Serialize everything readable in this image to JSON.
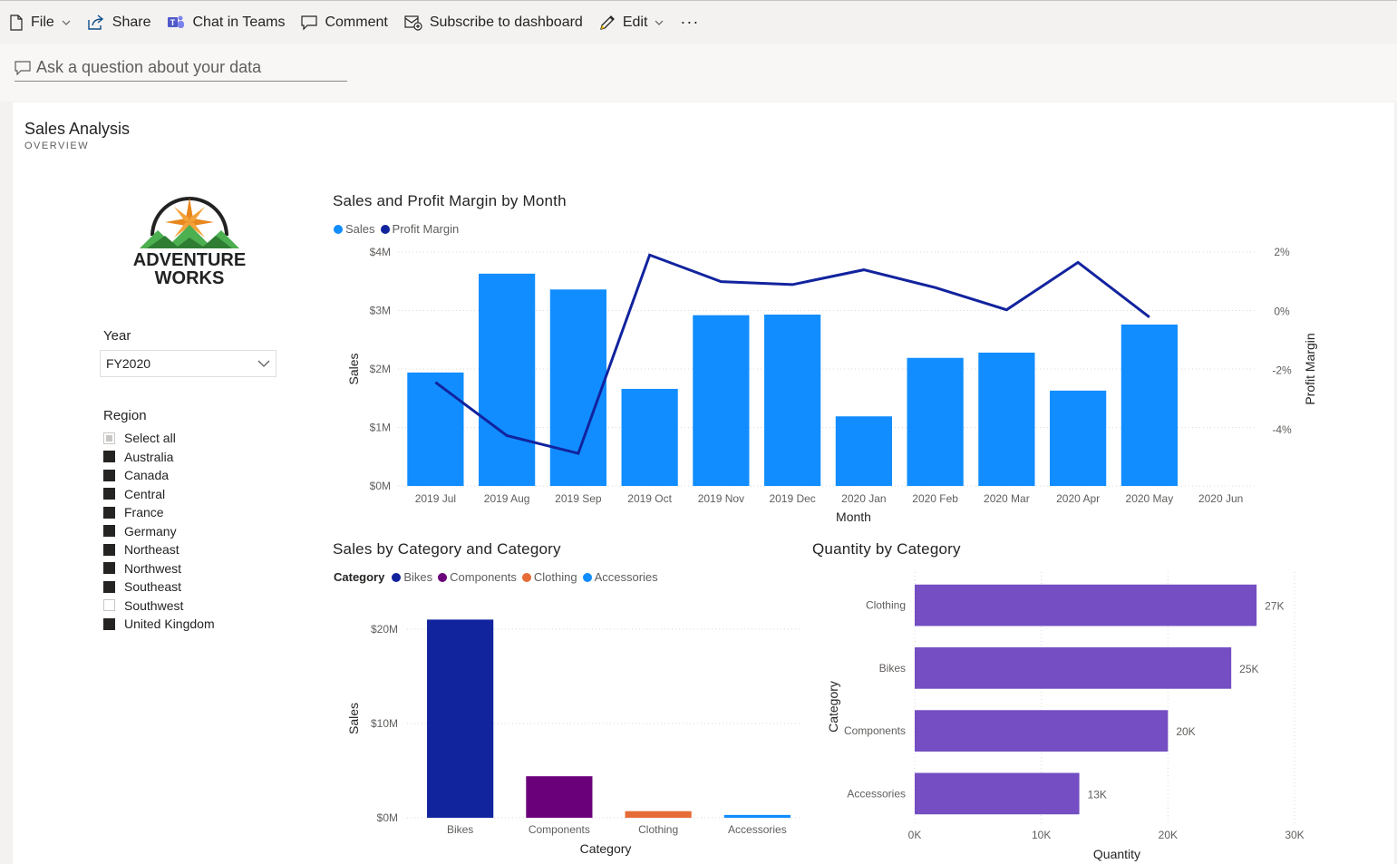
{
  "toolbar": {
    "file": "File",
    "share": "Share",
    "chat": "Chat in Teams",
    "comment": "Comment",
    "subscribe": "Subscribe to dashboard",
    "edit": "Edit",
    "more": "···"
  },
  "qa": {
    "placeholder": "Ask a question about your data"
  },
  "report": {
    "title": "Sales Analysis",
    "subtitle": "OVERVIEW"
  },
  "logo": {
    "line1": "ADVENTURE",
    "line2": "WORKS"
  },
  "year_slicer": {
    "title": "Year",
    "value": "FY2020"
  },
  "region_slicer": {
    "title": "Region",
    "items": [
      {
        "label": "Select all",
        "state": "partial"
      },
      {
        "label": "Australia",
        "state": "on"
      },
      {
        "label": "Canada",
        "state": "on"
      },
      {
        "label": "Central",
        "state": "on"
      },
      {
        "label": "France",
        "state": "on"
      },
      {
        "label": "Germany",
        "state": "on"
      },
      {
        "label": "Northeast",
        "state": "on"
      },
      {
        "label": "Northwest",
        "state": "on"
      },
      {
        "label": "Southeast",
        "state": "on"
      },
      {
        "label": "Southwest",
        "state": "off"
      },
      {
        "label": "United Kingdom",
        "state": "on"
      }
    ]
  },
  "colors": {
    "sales": "#118dff",
    "profit": "#12239e",
    "bikes": "#12239e",
    "components": "#6b007b",
    "clothing": "#e66c37",
    "accessories": "#118dff",
    "quantity": "#744ec2"
  },
  "chart_data": [
    {
      "type": "bar",
      "title": "Sales and Profit Margin by Month",
      "xlabel": "Month",
      "ylabel": "Sales",
      "y2label": "Profit Margin",
      "legend": [
        "Sales",
        "Profit Margin"
      ],
      "categories": [
        "2019 Jul",
        "2019 Aug",
        "2019 Sep",
        "2019 Oct",
        "2019 Nov",
        "2019 Dec",
        "2020 Jan",
        "2020 Feb",
        "2020 Mar",
        "2020 Apr",
        "2020 May",
        "2020 Jun"
      ],
      "yticks": [
        "$0M",
        "$1M",
        "$2M",
        "$3M",
        "$4M"
      ],
      "y2ticks": [
        "2%",
        "0%",
        "-2%",
        "-4%"
      ],
      "ylim": [
        0,
        4
      ],
      "y2lim": [
        -5.9,
        2
      ],
      "series": [
        {
          "name": "Sales",
          "values": [
            1.94,
            3.63,
            3.36,
            1.66,
            2.92,
            2.93,
            1.19,
            2.19,
            2.28,
            1.63,
            2.76,
            null
          ]
        },
        {
          "name": "Profit Margin",
          "values": [
            -2.4,
            -4.2,
            -4.8,
            1.9,
            1.0,
            0.9,
            1.4,
            0.8,
            0.05,
            1.65,
            -0.2,
            null
          ]
        }
      ],
      "legend_position": "top-left",
      "grid": true
    },
    {
      "type": "bar",
      "title": "Sales by Category and Category",
      "xlabel": "Category",
      "ylabel": "Sales",
      "legend_title": "Category",
      "legend": [
        "Bikes",
        "Components",
        "Clothing",
        "Accessories"
      ],
      "categories": [
        "Bikes",
        "Components",
        "Clothing",
        "Accessories"
      ],
      "yticks": [
        "$0M",
        "$10M",
        "$20M"
      ],
      "ylim": [
        0,
        22
      ],
      "values": [
        21.0,
        4.4,
        0.7,
        0.3
      ],
      "legend_position": "top-left",
      "grid": true
    },
    {
      "type": "bar",
      "orientation": "horizontal",
      "title": "Quantity by Category",
      "xlabel": "Quantity",
      "ylabel": "Category",
      "categories": [
        "Clothing",
        "Bikes",
        "Components",
        "Accessories"
      ],
      "values": [
        27,
        25,
        20,
        13
      ],
      "data_labels": [
        "27K",
        "25K",
        "20K",
        "13K"
      ],
      "xticks": [
        "0K",
        "10K",
        "20K",
        "30K"
      ],
      "xlim": [
        0,
        30
      ],
      "grid": true
    }
  ]
}
